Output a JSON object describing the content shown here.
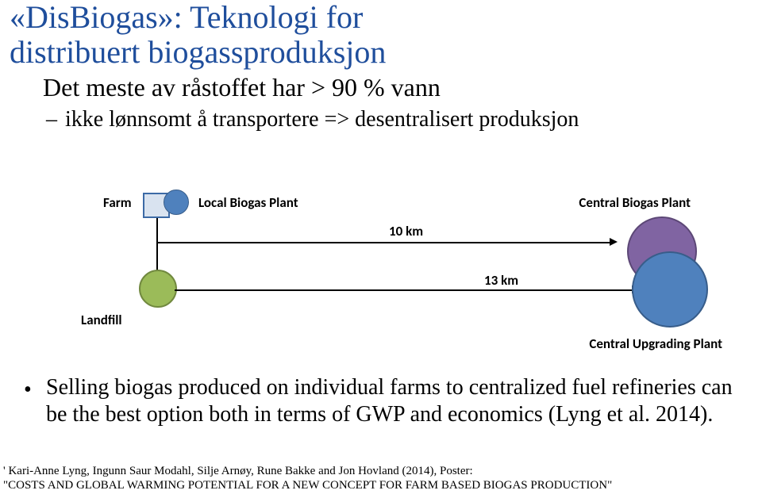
{
  "title": {
    "line1": "«DisBiogas»: Teknologi for",
    "line2": "distribuert biogassproduksjon",
    "subtitle": "Det meste av råstoffet har > 90 % vann",
    "subbullet": "ikke lønnsomt å transportere => desentralisert produksjon",
    "title_color": "#1f4e9c",
    "title_fontsize": 40,
    "subtitle_fontsize": 32,
    "subbullet_fontsize": 28
  },
  "diagram": {
    "farm_label": "Farm",
    "local_label": "Local Biogas Plant",
    "central_label": "Central Biogas Plant",
    "landfill_label": "Landfill",
    "upgrade_label": "Central Upgrading Plant",
    "dist_10": "10 km",
    "dist_13": "13 km",
    "label_fontsize": 17,
    "colors": {
      "farm_square_fill": "#d9e3f0",
      "farm_square_border": "#3c6aa6",
      "small_blue_fill": "#4f81bd",
      "small_blue_border": "#385d8a",
      "landfill_fill": "#9bbb59",
      "landfill_border": "#71893f",
      "central_purple_fill": "#8064a2",
      "central_purple_border": "#5c4776",
      "central_blue_fill": "#4f81bd",
      "central_blue_border": "#385d8a",
      "line_color": "#000000"
    }
  },
  "selling": {
    "text": "Selling biogas produced on individual farms to centralized fuel refineries can be the best option both in terms of GWP and economics (Lyng et al. 2014).",
    "fontsize": 28
  },
  "footnote": {
    "line1": "' Kari-Anne Lyng, Ingunn Saur Modahl, Silje Arnøy, Rune Bakke and Jon Hovland (2014), Poster:",
    "line2": "\"COSTS AND GLOBAL WARMING POTENTIAL FOR A NEW CONCEPT FOR FARM BASED BIOGAS PRODUCTION\"",
    "fontsize": 15
  }
}
